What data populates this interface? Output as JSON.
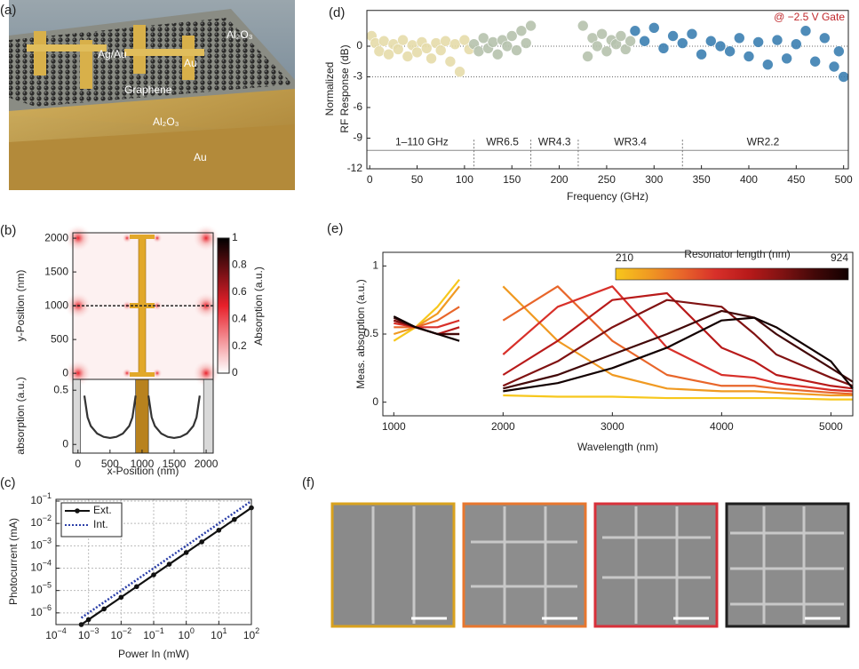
{
  "figure_a": {
    "label": "(a)",
    "annotations": [
      "Al₂O₃",
      "Ag/Au",
      "Au",
      "Graphene",
      "Al₂O₃",
      "Au"
    ]
  },
  "figure_f": {
    "label": "(f)"
  },
  "chart_data": [
    {
      "type": "scatter",
      "label": "(d)",
      "xlabel": "Frequency (GHz)",
      "ylabel": [
        "Normalized",
        "RF Response (dB)"
      ],
      "annotation": "@ −2.5 V Gate",
      "annotation_color": "#c0282c",
      "xlim": [
        -3,
        505
      ],
      "ylim": [
        -12,
        3.5
      ],
      "xticks": [
        0,
        50,
        100,
        150,
        200,
        250,
        300,
        350,
        400,
        450,
        500
      ],
      "yticks": [
        0,
        -3,
        -6,
        -9,
        -12
      ],
      "reference_lines": [
        0,
        -3
      ],
      "band_line_y": -10.2,
      "band_edges": [
        0,
        110,
        170,
        220,
        330,
        500
      ],
      "band_labels": [
        "1–110 GHz",
        "WR6.5",
        "WR4.3",
        "WR3.4",
        "WR2.2"
      ],
      "series": [
        {
          "color": "#e6dcaa",
          "x": [
            2,
            6,
            10,
            15,
            20,
            25,
            30,
            35,
            40,
            45,
            50,
            55,
            60,
            65,
            70,
            75,
            80,
            85,
            90,
            95,
            100,
            105
          ],
          "values": [
            1.0,
            0.3,
            -0.5,
            0.5,
            -0.8,
            0.2,
            -0.3,
            0.6,
            -1.0,
            0.1,
            -0.6,
            0.4,
            -0.2,
            -1.2,
            0.3,
            -0.4,
            0.5,
            -1.5,
            0.2,
            -2.5,
            0.6,
            -0.3
          ]
        },
        {
          "color": "#b6c3ae",
          "x": [
            110,
            115,
            120,
            125,
            130,
            135,
            140,
            145,
            150,
            155,
            160,
            165,
            170,
            225,
            230,
            235,
            240,
            245,
            250,
            255,
            260,
            265,
            270,
            275
          ],
          "values": [
            0.2,
            -0.5,
            0.8,
            -0.2,
            0.4,
            -0.8,
            0.6,
            0.0,
            1.0,
            -0.4,
            1.5,
            0.3,
            2.0,
            2.0,
            -1.0,
            0.8,
            0.0,
            1.2,
            -0.5,
            0.6,
            0.2,
            1.0,
            -0.3,
            0.5
          ]
        },
        {
          "color": "#3d80b2",
          "x": [
            280,
            290,
            300,
            310,
            320,
            330,
            340,
            350,
            360,
            370,
            380,
            390,
            400,
            410,
            420,
            430,
            440,
            450,
            460,
            470,
            480,
            490,
            495,
            500
          ],
          "values": [
            1.5,
            0.5,
            1.8,
            -0.2,
            1.0,
            0.3,
            1.2,
            -0.8,
            0.5,
            0.0,
            -0.5,
            0.8,
            -1.0,
            0.4,
            -1.8,
            0.6,
            -1.2,
            0.2,
            1.5,
            -1.5,
            0.8,
            -2.0,
            -0.5,
            -3.0
          ]
        }
      ]
    },
    {
      "type": "heatmap",
      "label": "(b)",
      "ylabel": "y-Position (nm)",
      "xlim": [
        -80,
        2110
      ],
      "ylim": [
        -90,
        2080
      ],
      "yticks": [
        0,
        500,
        1000,
        1500,
        2000
      ],
      "cut_y": 1000,
      "colorbar": {
        "label": "Absorption (a.u.)",
        "lim": [
          0,
          1
        ],
        "ticks": [
          0,
          0.2,
          0.4,
          0.6,
          0.8,
          1
        ],
        "colors": [
          "#ffffff",
          "#e8202a",
          "#000000"
        ]
      }
    },
    {
      "type": "line",
      "xlabel": "x-Position (nm)",
      "ylabel": "absorption (a.u.)",
      "xlim": [
        -80,
        2110
      ],
      "ylim": [
        -0.08,
        0.6
      ],
      "xticks": [
        0,
        500,
        1000,
        1500,
        2000
      ],
      "yticks": [
        0,
        0.5
      ],
      "regions": [
        {
          "x": [
            -80,
            40
          ],
          "color": "#d9d9d9"
        },
        {
          "x": [
            900,
            1100
          ],
          "color": "#b8821e"
        },
        {
          "x": [
            1960,
            2110
          ],
          "color": "#d9d9d9"
        }
      ],
      "x": [
        100,
        150,
        200,
        300,
        400,
        500,
        600,
        700,
        800,
        850,
        900,
        1000,
        1100,
        1150,
        1200,
        1300,
        1400,
        1500,
        1600,
        1700,
        1800,
        1850,
        1900
      ],
      "series": [
        {
          "color": "#333333",
          "values": [
            0.45,
            0.25,
            0.17,
            0.1,
            0.07,
            0.06,
            0.07,
            0.1,
            0.17,
            0.25,
            0.45,
            null,
            0.45,
            0.25,
            0.17,
            0.1,
            0.07,
            0.06,
            0.07,
            0.1,
            0.17,
            0.25,
            0.45
          ]
        }
      ]
    },
    {
      "type": "line",
      "label": "(c)",
      "xlabel": "Power In (mW)",
      "ylabel": "Photocurrent (mA)",
      "log_x": true,
      "log_y": true,
      "grid": true,
      "legend": "upper-left",
      "xlim": [
        0.0001,
        100
      ],
      "ylim": [
        3e-07,
        0.12
      ],
      "xticks": [
        {
          "value": 0.0001,
          "label": "10",
          "exponent": "−4"
        },
        {
          "value": 0.001,
          "label": "10",
          "exponent": "−3"
        },
        {
          "value": 0.01,
          "label": "10",
          "exponent": "−2"
        },
        {
          "value": 0.1,
          "label": "10",
          "exponent": "−1"
        },
        {
          "value": 1,
          "label": "10",
          "exponent": "0"
        },
        {
          "value": 10,
          "label": "10",
          "exponent": "1"
        },
        {
          "value": 100,
          "label": "10",
          "exponent": "2"
        }
      ],
      "yticks": [
        {
          "value": 1e-06,
          "label": "10",
          "exponent": "−6"
        },
        {
          "value": 1e-05,
          "label": "10",
          "exponent": "−5"
        },
        {
          "value": 0.0001,
          "label": "10",
          "exponent": "−4"
        },
        {
          "value": 0.001,
          "label": "10",
          "exponent": "−3"
        },
        {
          "value": 0.01,
          "label": "10",
          "exponent": "−2"
        },
        {
          "value": 0.1,
          "label": "10",
          "exponent": "−1"
        }
      ],
      "x": [
        0.0006,
        0.001,
        0.003,
        0.01,
        0.03,
        0.1,
        0.3,
        1,
        3,
        10,
        30,
        100
      ],
      "series": [
        {
          "name": "Ext.",
          "color": "#111111",
          "marker": true,
          "values": [
            3e-07,
            5e-07,
            1.5e-06,
            5e-06,
            1.5e-05,
            5e-05,
            0.00015,
            0.0005,
            0.0015,
            0.005,
            0.015,
            0.05
          ]
        },
        {
          "name": "Int.",
          "color": "#2b3fa8",
          "dotted": true,
          "values": [
            6e-07,
            1e-06,
            3e-06,
            1e-05,
            3e-05,
            0.0001,
            0.0003,
            0.001,
            0.003,
            0.01,
            0.03,
            0.1
          ]
        }
      ]
    },
    {
      "type": "line",
      "label": "(e)",
      "xlabel": "Wavelength (nm)",
      "ylabel": "Meas. absorption (a.u.)",
      "xlim": [
        900,
        5200
      ],
      "ylim": [
        -0.1,
        1.1
      ],
      "xticks": [
        1000,
        2000,
        3000,
        4000,
        5000
      ],
      "yticks": [
        0,
        0.5,
        1
      ],
      "colorbar": {
        "label": "Resonator length (nm)",
        "range_labels": [
          210,
          924
        ]
      },
      "x": [
        1000,
        1200,
        1400,
        1600,
        1800,
        2000,
        2500,
        3000,
        3500,
        4000,
        4300,
        4500,
        5000,
        5200
      ],
      "series": [
        {
          "color": "#f7c71c",
          "values": [
            0.45,
            0.55,
            0.7,
            0.9,
            null,
            0.05,
            0.04,
            0.04,
            0.03,
            0.03,
            0.03,
            0.03,
            0.02,
            0.02
          ]
        },
        {
          "color": "#f09a22",
          "values": [
            0.5,
            0.55,
            0.65,
            0.85,
            null,
            0.85,
            0.45,
            0.2,
            0.1,
            0.08,
            0.08,
            0.07,
            0.05,
            0.05
          ]
        },
        {
          "color": "#e8662a",
          "values": [
            0.55,
            0.55,
            0.6,
            0.7,
            null,
            0.6,
            0.85,
            0.45,
            0.2,
            0.12,
            0.12,
            0.1,
            0.07,
            0.06
          ]
        },
        {
          "color": "#d8302a",
          "values": [
            0.58,
            0.55,
            0.55,
            0.6,
            null,
            0.35,
            0.7,
            0.85,
            0.4,
            0.2,
            0.18,
            0.14,
            0.09,
            0.08
          ]
        },
        {
          "color": "#b81a1a",
          "values": [
            0.6,
            0.55,
            0.5,
            0.55,
            null,
            0.2,
            0.45,
            0.75,
            0.8,
            0.4,
            0.3,
            0.2,
            0.12,
            0.1
          ]
        },
        {
          "color": "#801212",
          "values": [
            0.6,
            0.55,
            0.5,
            0.5,
            null,
            0.12,
            0.3,
            0.55,
            0.75,
            0.7,
            0.5,
            0.35,
            0.18,
            0.12
          ]
        },
        {
          "color": "#420808",
          "values": [
            0.62,
            0.55,
            0.5,
            0.5,
            null,
            0.1,
            0.2,
            0.35,
            0.5,
            0.67,
            0.62,
            0.5,
            0.25,
            0.15
          ]
        },
        {
          "color": "#120000",
          "values": [
            0.63,
            0.55,
            0.5,
            0.45,
            null,
            0.08,
            0.14,
            0.25,
            0.4,
            0.6,
            0.62,
            0.55,
            0.3,
            0.1
          ]
        }
      ]
    }
  ]
}
